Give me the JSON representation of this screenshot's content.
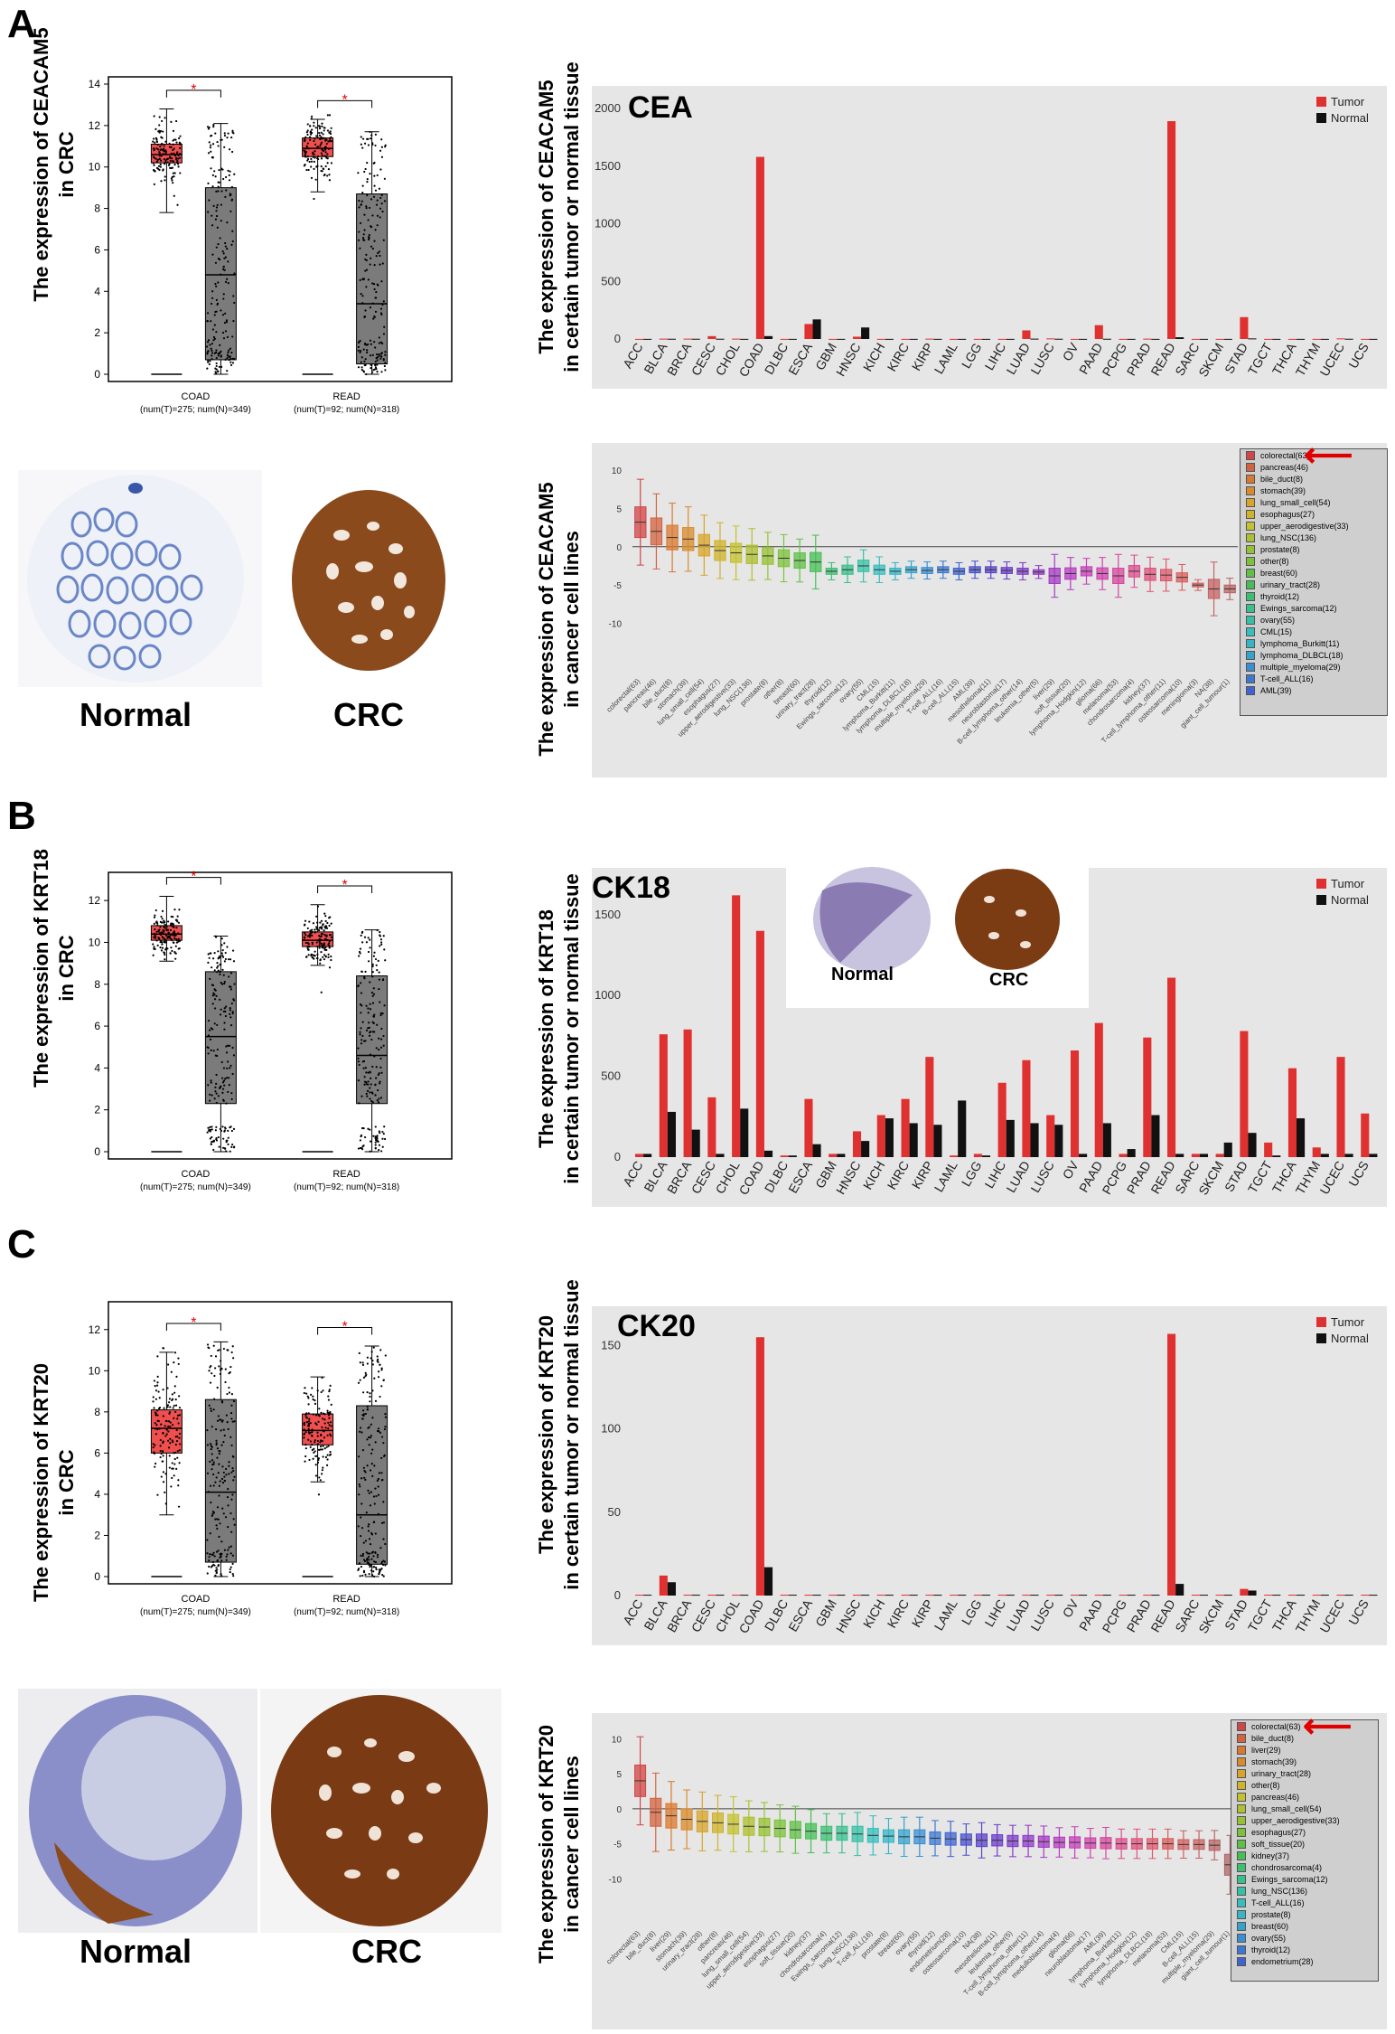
{
  "panels": {
    "a": "A",
    "b": "B",
    "c": "C"
  },
  "tissue_labels": {
    "normal": "Normal",
    "crc": "CRC"
  },
  "bar_labels": {
    "cea": "CEA",
    "ck18": "CK18",
    "ck20": "CK20"
  },
  "colors": {
    "tumor": "#e03131",
    "normal": "#111111",
    "box_tumor": "#ef4f4f",
    "box_normal": "#7b7b7b",
    "bg": "#e6e6e6",
    "sig": "#e00000"
  },
  "ylabels": {
    "a_box": [
      "The expression of CEACAM5",
      "in CRC"
    ],
    "a_bar": [
      "The expression of CEACAM5",
      "in certain tumor or normal tissue"
    ],
    "a_cell": [
      "The expression of CEACAM5",
      "in cancer cell lines"
    ],
    "b_box": [
      "The expression of KRT18",
      "in CRC"
    ],
    "b_bar": [
      "The expression of KRT18",
      "in certain tumor or normal tissue"
    ],
    "c_box": [
      "The expression of KRT20",
      "in CRC"
    ],
    "c_bar": [
      "The expression of KRT20",
      "in certain tumor or normal tissue"
    ],
    "c_cell": [
      "The expression of KRT20",
      "in cancer cell lines"
    ]
  },
  "chart_data": [
    {
      "id": "a_box",
      "type": "box",
      "ylim": [
        0,
        14
      ],
      "yticks": [
        0,
        2,
        4,
        6,
        8,
        10,
        12,
        14
      ],
      "significance": "*",
      "groups": [
        {
          "name": "COAD",
          "sub": "(num(T)=275; num(N)=349)",
          "tumor": {
            "q1": 10.2,
            "median": 10.6,
            "q3": 11.1,
            "low": 7.8,
            "high": 12.8
          },
          "normal": {
            "q1": 0.7,
            "median": 4.8,
            "q3": 9.0,
            "low": 0.0,
            "high": 12.1
          }
        },
        {
          "name": "READ",
          "sub": "(num(T)=92; num(N)=318)",
          "tumor": {
            "q1": 10.5,
            "median": 10.9,
            "q3": 11.4,
            "low": 8.8,
            "high": 12.3
          },
          "normal": {
            "q1": 0.5,
            "median": 3.4,
            "q3": 8.7,
            "low": 0.0,
            "high": 11.7
          }
        }
      ]
    },
    {
      "id": "a_bar",
      "type": "bar",
      "ylim": [
        0,
        2000
      ],
      "yticks": [
        0,
        500,
        1000,
        1500,
        2000
      ],
      "categories": [
        "ACC",
        "BLCA",
        "BRCA",
        "CESC",
        "CHOL",
        "COAD",
        "DLBC",
        "ESCA",
        "GBM",
        "HNSC",
        "KICH",
        "KIRC",
        "KIRP",
        "LAML",
        "LGG",
        "LIHC",
        "LUAD",
        "LUSC",
        "OV",
        "PAAD",
        "PCPG",
        "PRAD",
        "READ",
        "SARC",
        "SKCM",
        "STAD",
        "TGCT",
        "THCA",
        "THYM",
        "UCEC",
        "UCS"
      ],
      "series": [
        {
          "name": "Tumor",
          "values": [
            1,
            3,
            3,
            25,
            3,
            1580,
            1,
            130,
            1,
            20,
            1,
            1,
            3,
            1,
            1,
            1,
            75,
            5,
            1,
            120,
            1,
            3,
            1890,
            1,
            1,
            190,
            1,
            1,
            1,
            5,
            1
          ]
        },
        {
          "name": "Normal",
          "values": [
            1,
            2,
            2,
            2,
            1,
            25,
            1,
            170,
            1,
            100,
            1,
            1,
            1,
            1,
            1,
            1,
            3,
            2,
            1,
            2,
            1,
            1,
            15,
            1,
            1,
            5,
            1,
            1,
            1,
            2,
            1
          ]
        }
      ]
    },
    {
      "id": "a_cell",
      "type": "box",
      "ylim": [
        -15,
        12
      ],
      "yticks": [
        -10,
        -5,
        0,
        5,
        10
      ],
      "categories": [
        "colorectal(63)",
        "pancreas(46)",
        "bile_duct(8)",
        "stomach(39)",
        "lung_small_cell(54)",
        "esophagus(27)",
        "upper_aerodigestive(33)",
        "lung_NSC(136)",
        "prostate(8)",
        "other(8)",
        "breast(60)",
        "urinary_tract(28)",
        "thyroid(12)",
        "Ewings_sarcoma(12)",
        "ovary(55)",
        "CML(15)",
        "lymphoma_Burkitt(11)",
        "lymphoma_DLBCL(18)",
        "multiple_myeloma(29)",
        "T-cell_ALL(16)",
        "B-cell_ALL(15)",
        "AML(39)",
        "mesothelioma(11)",
        "neuroblastoma(17)",
        "B-cell_lymphoma_other(14)",
        "leukemia_other(5)",
        "liver(29)",
        "soft_tissue(20)",
        "lymphoma_Hodgkin(12)",
        "glioma(66)",
        "melanoma(53)",
        "chondrosarcoma(4)",
        "kidney(37)",
        "T-cell_lymphoma_other(11)",
        "osteosarcoma(10)",
        "meningioma(3)",
        "NA(38)",
        "giant_cell_tumour(1)"
      ],
      "medians": [
        3.2,
        2.0,
        1.2,
        1.0,
        0.2,
        -0.5,
        -0.8,
        -1.0,
        -1.2,
        -1.5,
        -1.8,
        -2.0,
        -3.2,
        -3.0,
        -2.5,
        -3.0,
        -3.2,
        -3.0,
        -3.1,
        -3.0,
        -3.2,
        -3.0,
        -3.0,
        -3.1,
        -3.2,
        -3.3,
        -3.8,
        -3.5,
        -3.2,
        -3.5,
        -3.8,
        -3.2,
        -3.6,
        -3.7,
        -4.0,
        -5.0,
        -5.5,
        -5.5
      ],
      "iqr": [
        4.0,
        3.5,
        3.2,
        3.0,
        2.8,
        2.6,
        2.5,
        2.4,
        2.2,
        2.2,
        2.0,
        2.5,
        0.8,
        1.2,
        1.5,
        1.2,
        0.8,
        0.8,
        0.8,
        0.8,
        0.8,
        0.8,
        0.8,
        0.8,
        0.8,
        0.6,
        2.0,
        1.5,
        1.2,
        1.5,
        2.0,
        1.5,
        1.6,
        1.5,
        1.2,
        0.5,
        2.5,
        1.0
      ],
      "legend_visible": [
        "colorectal(63)",
        "pancreas(46)",
        "bile_duct(8)",
        "stomach(39)",
        "lung_small_cell(54)",
        "esophagus(27)",
        "upper_aerodigestive(33)",
        "lung_NSC(136)",
        "prostate(8)",
        "other(8)",
        "breast(60)",
        "urinary_tract(28)",
        "thyroid(12)",
        "Ewings_sarcoma(12)",
        "ovary(55)",
        "CML(15)",
        "lymphoma_Burkitt(11)",
        "lymphoma_DLBCL(18)",
        "multiple_myeloma(29)",
        "T-cell_ALL(16)",
        "AML(39)"
      ]
    },
    {
      "id": "b_box",
      "type": "box",
      "ylim": [
        0,
        13
      ],
      "yticks": [
        0,
        2,
        4,
        6,
        8,
        10,
        12
      ],
      "significance": "*",
      "groups": [
        {
          "name": "COAD",
          "sub": "(num(T)=275; num(N)=349)",
          "tumor": {
            "q1": 10.1,
            "median": 10.4,
            "q3": 10.8,
            "low": 9.1,
            "high": 12.2
          },
          "normal": {
            "q1": 2.3,
            "median": 5.5,
            "q3": 8.6,
            "low": 0.0,
            "high": 10.3
          }
        },
        {
          "name": "READ",
          "sub": "(num(T)=92; num(N)=318)",
          "tumor": {
            "q1": 9.8,
            "median": 10.1,
            "q3": 10.5,
            "low": 8.9,
            "high": 11.8
          },
          "normal": {
            "q1": 2.3,
            "median": 4.6,
            "q3": 8.4,
            "low": 0.0,
            "high": 10.6
          }
        }
      ]
    },
    {
      "id": "b_bar",
      "type": "bar",
      "ylim": [
        0,
        1650
      ],
      "yticks": [
        0,
        500,
        1000,
        1500
      ],
      "categories": [
        "ACC",
        "BLCA",
        "BRCA",
        "CESC",
        "CHOL",
        "COAD",
        "DLBC",
        "ESCA",
        "GBM",
        "HNSC",
        "KICH",
        "KIRC",
        "KIRP",
        "LAML",
        "LGG",
        "LIHC",
        "LUAD",
        "LUSC",
        "OV",
        "PAAD",
        "PCPG",
        "PRAD",
        "READ",
        "SARC",
        "SKCM",
        "STAD",
        "TGCT",
        "THCA",
        "THYM",
        "UCEC",
        "UCS"
      ],
      "series": [
        {
          "name": "Tumor",
          "values": [
            20,
            760,
            790,
            370,
            1620,
            1400,
            10,
            360,
            20,
            160,
            260,
            360,
            620,
            10,
            20,
            460,
            600,
            260,
            660,
            830,
            20,
            740,
            1110,
            20,
            20,
            780,
            90,
            550,
            60,
            620,
            270
          ]
        },
        {
          "name": "Normal",
          "values": [
            20,
            280,
            170,
            20,
            300,
            40,
            10,
            80,
            20,
            100,
            240,
            210,
            200,
            350,
            10,
            230,
            210,
            200,
            20,
            210,
            50,
            260,
            20,
            20,
            90,
            150,
            10,
            240,
            20,
            20,
            20
          ]
        }
      ]
    },
    {
      "id": "c_box",
      "type": "box",
      "ylim": [
        0,
        13
      ],
      "yticks": [
        0,
        2,
        4,
        6,
        8,
        10,
        12
      ],
      "significance": "*",
      "groups": [
        {
          "name": "COAD",
          "sub": "(num(T)=275; num(N)=349)",
          "tumor": {
            "q1": 6.0,
            "median": 7.2,
            "q3": 8.1,
            "low": 3.0,
            "high": 10.9
          },
          "normal": {
            "q1": 0.7,
            "median": 4.1,
            "q3": 8.6,
            "low": 0.0,
            "high": 11.4
          }
        },
        {
          "name": "READ",
          "sub": "(num(T)=92; num(N)=318)",
          "tumor": {
            "q1": 6.4,
            "median": 7.1,
            "q3": 7.9,
            "low": 4.6,
            "high": 9.7
          },
          "normal": {
            "q1": 0.6,
            "median": 3.0,
            "q3": 8.3,
            "low": 0.0,
            "high": 11.2
          }
        }
      ]
    },
    {
      "id": "c_bar",
      "type": "bar",
      "ylim": [
        0,
        160
      ],
      "yticks": [
        0,
        50,
        100,
        150
      ],
      "categories": [
        "ACC",
        "BLCA",
        "BRCA",
        "CESC",
        "CHOL",
        "COAD",
        "DLBC",
        "ESCA",
        "GBM",
        "HNSC",
        "KICH",
        "KIRC",
        "KIRP",
        "LAML",
        "LGG",
        "LIHC",
        "LUAD",
        "LUSC",
        "OV",
        "PAAD",
        "PCPG",
        "PRAD",
        "READ",
        "SARC",
        "SKCM",
        "STAD",
        "TGCT",
        "THCA",
        "THYM",
        "UCEC",
        "UCS"
      ],
      "series": [
        {
          "name": "Tumor",
          "values": [
            0.5,
            12,
            0.5,
            0.5,
            0.5,
            155,
            0.5,
            0.5,
            0.5,
            0.5,
            0.5,
            0.5,
            0.5,
            0.5,
            0.5,
            0.5,
            0.5,
            0.5,
            0.5,
            0.5,
            0.5,
            0.5,
            157,
            0.5,
            0.5,
            4,
            0.5,
            0.5,
            0.5,
            0.5,
            0.5
          ]
        },
        {
          "name": "Normal",
          "values": [
            0.5,
            8,
            0.5,
            0.5,
            0.5,
            17,
            0.5,
            0.5,
            0.5,
            0.5,
            0.5,
            0.5,
            0.5,
            0.5,
            0.5,
            0.5,
            0.5,
            0.5,
            0.5,
            0.5,
            0.5,
            0.5,
            7,
            0.5,
            0.5,
            3,
            0.5,
            0.5,
            0.5,
            0.5,
            0.5
          ]
        }
      ]
    },
    {
      "id": "c_cell",
      "type": "box",
      "ylim": [
        -15,
        12
      ],
      "yticks": [
        -10,
        -5,
        0,
        5,
        10
      ],
      "categories": [
        "colorectal(63)",
        "bile_duct(8)",
        "liver(29)",
        "stomach(39)",
        "urinary_tract(28)",
        "other(8)",
        "pancreas(46)",
        "lung_small_cell(54)",
        "upper_aerodigestive(33)",
        "esophagus(27)",
        "soft_tissue(20)",
        "kidney(37)",
        "chondrosarcoma(4)",
        "Ewings_sarcoma(12)",
        "lung_NSC(136)",
        "T-cell_ALL(16)",
        "prostate(8)",
        "breast(60)",
        "ovary(55)",
        "thyroid(12)",
        "endometrium(28)",
        "osteosarcoma(10)",
        "NA(38)",
        "mesothelioma(11)",
        "leukemia_other(5)",
        "T-cell_lymphoma_other(11)",
        "B-cell_lymphoma_other(14)",
        "medulloblastoma(4)",
        "glioma(66)",
        "neuroblastoma(17)",
        "AML(39)",
        "lymphoma_Burkitt(11)",
        "lymphoma_Hodgkin(12)",
        "lymphoma_DLBCL(18)",
        "melanoma(53)",
        "CML(15)",
        "B-cell_ALL(15)",
        "multiple_myeloma(29)",
        "giant_cell_tumour(1)"
      ],
      "medians": [
        4.0,
        -0.5,
        -1.0,
        -1.5,
        -1.8,
        -2.0,
        -2.2,
        -2.5,
        -2.6,
        -2.8,
        -3.0,
        -3.2,
        -3.5,
        -3.5,
        -3.6,
        -3.8,
        -3.9,
        -4.0,
        -4.0,
        -4.2,
        -4.3,
        -4.4,
        -4.5,
        -4.5,
        -4.6,
        -4.6,
        -4.7,
        -4.8,
        -4.8,
        -4.9,
        -4.9,
        -5.0,
        -5.0,
        -5.0,
        -5.0,
        -5.1,
        -5.1,
        -5.2,
        -8.0
      ],
      "iqr": [
        4.5,
        4.0,
        3.5,
        3.0,
        3.0,
        2.8,
        2.8,
        2.6,
        2.5,
        2.4,
        2.4,
        2.2,
        2.0,
        2.0,
        2.2,
        2.0,
        1.8,
        2.0,
        2.0,
        1.8,
        1.8,
        1.6,
        1.8,
        1.6,
        1.6,
        1.6,
        1.6,
        1.5,
        1.6,
        1.5,
        1.6,
        1.5,
        1.5,
        1.5,
        1.5,
        1.4,
        1.4,
        1.5,
        3.0
      ],
      "legend_visible": [
        "colorectal(63)",
        "bile_duct(8)",
        "liver(29)",
        "stomach(39)",
        "urinary_tract(28)",
        "other(8)",
        "pancreas(46)",
        "lung_small_cell(54)",
        "upper_aerodigestive(33)",
        "esophagus(27)",
        "soft_tissue(20)",
        "kidney(37)",
        "chondrosarcoma(4)",
        "Ewings_sarcoma(12)",
        "lung_NSC(136)",
        "T-cell_ALL(16)",
        "prostate(8)",
        "breast(60)",
        "ovary(55)",
        "thyroid(12)",
        "endometrium(28)"
      ]
    }
  ]
}
